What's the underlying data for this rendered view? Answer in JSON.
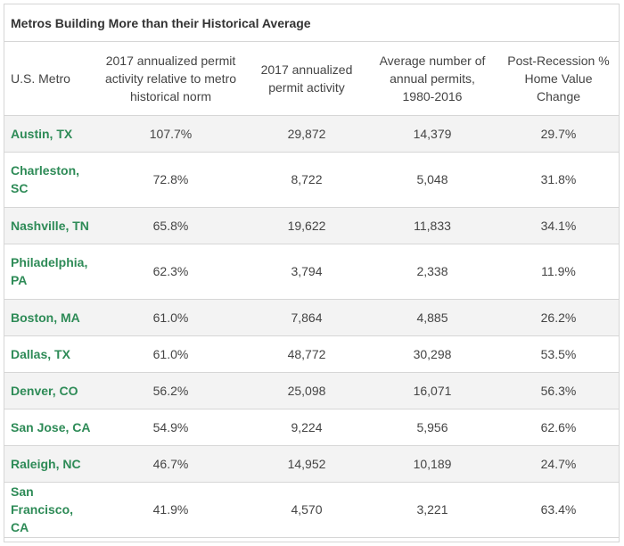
{
  "title": "Metros Building More than their Historical Average",
  "columns": [
    "U.S. Metro",
    "2017 annualized permit activity relative to metro historical norm",
    "2017 annualized permit activity",
    "Average number of annual permits, 1980-2016",
    "Post-Recession % Home Value Change"
  ],
  "rows": [
    {
      "metro": "Austin, TX",
      "relative": "107.7%",
      "activity": "29,872",
      "average": "14,379",
      "home_value": "29.7%"
    },
    {
      "metro": "Charleston, SC",
      "relative": "72.8%",
      "activity": "8,722",
      "average": "5,048",
      "home_value": "31.8%"
    },
    {
      "metro": "Nashville, TN",
      "relative": "65.8%",
      "activity": "19,622",
      "average": "11,833",
      "home_value": "34.1%"
    },
    {
      "metro": "Philadelphia, PA",
      "relative": "62.3%",
      "activity": "3,794",
      "average": "2,338",
      "home_value": "11.9%"
    },
    {
      "metro": "Boston, MA",
      "relative": "61.0%",
      "activity": "7,864",
      "average": "4,885",
      "home_value": "26.2%"
    },
    {
      "metro": "Dallas, TX",
      "relative": "61.0%",
      "activity": "48,772",
      "average": "30,298",
      "home_value": "53.5%"
    },
    {
      "metro": "Denver, CO",
      "relative": "56.2%",
      "activity": "25,098",
      "average": "16,071",
      "home_value": "56.3%"
    },
    {
      "metro": "San Jose, CA",
      "relative": "54.9%",
      "activity": "9,224",
      "average": "5,956",
      "home_value": "62.6%"
    },
    {
      "metro": "Raleigh, NC",
      "relative": "46.7%",
      "activity": "14,952",
      "average": "10,189",
      "home_value": "24.7%"
    },
    {
      "metro": "San Francisco, CA",
      "relative": "41.9%",
      "activity": "4,570",
      "average": "3,221",
      "home_value": "63.4%"
    }
  ],
  "colors": {
    "metro_link": "#2e8b57",
    "stripe": "#f3f3f3",
    "border": "#d6d6d6"
  }
}
